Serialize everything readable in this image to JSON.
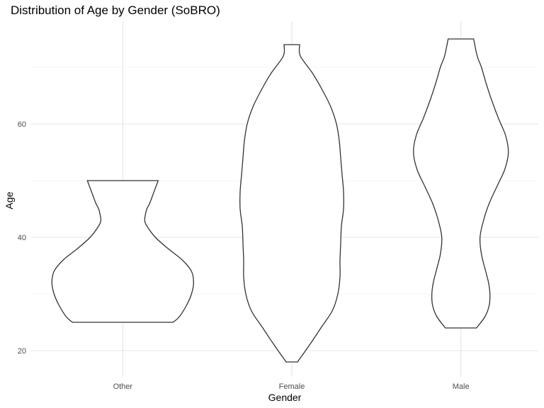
{
  "chart_data": {
    "type": "violin",
    "title": "Distribution of Age by Gender (SoBRO)",
    "xlabel": "Gender",
    "ylabel": "Age",
    "categories": [
      "Other",
      "Female",
      "Male"
    ],
    "y_ticks": [
      20,
      40,
      60
    ],
    "ylim": [
      15.5,
      78
    ],
    "grid": true,
    "series": [
      {
        "category": "Other",
        "min": 25,
        "max": 50,
        "density": [
          [
            25,
            0.71
          ],
          [
            26,
            0.8
          ],
          [
            28,
            0.9
          ],
          [
            30,
            0.97
          ],
          [
            32,
            1.0
          ],
          [
            34,
            0.97
          ],
          [
            36,
            0.84
          ],
          [
            38,
            0.64
          ],
          [
            40,
            0.46
          ],
          [
            42,
            0.34
          ],
          [
            43,
            0.31
          ],
          [
            44,
            0.32
          ],
          [
            45,
            0.34
          ],
          [
            46,
            0.38
          ],
          [
            48,
            0.44
          ],
          [
            50,
            0.5
          ]
        ]
      },
      {
        "category": "Female",
        "min": 18,
        "max": 74,
        "density": [
          [
            18,
            0.08
          ],
          [
            21,
            0.25
          ],
          [
            24,
            0.41
          ],
          [
            27,
            0.57
          ],
          [
            30,
            0.65
          ],
          [
            33,
            0.68
          ],
          [
            36,
            0.68
          ],
          [
            39,
            0.69
          ],
          [
            42,
            0.7
          ],
          [
            45,
            0.73
          ],
          [
            48,
            0.73
          ],
          [
            51,
            0.71
          ],
          [
            54,
            0.69
          ],
          [
            57,
            0.67
          ],
          [
            60,
            0.63
          ],
          [
            63,
            0.55
          ],
          [
            66,
            0.43
          ],
          [
            69,
            0.29
          ],
          [
            72,
            0.12
          ],
          [
            74,
            0.11
          ]
        ]
      },
      {
        "category": "Male",
        "min": 24,
        "max": 75,
        "density": [
          [
            24,
            0.22
          ],
          [
            26,
            0.34
          ],
          [
            28,
            0.4
          ],
          [
            30,
            0.41
          ],
          [
            32,
            0.39
          ],
          [
            34,
            0.35
          ],
          [
            37,
            0.29
          ],
          [
            40,
            0.27
          ],
          [
            43,
            0.32
          ],
          [
            46,
            0.4
          ],
          [
            49,
            0.51
          ],
          [
            52,
            0.62
          ],
          [
            55,
            0.67
          ],
          [
            58,
            0.63
          ],
          [
            61,
            0.53
          ],
          [
            64,
            0.44
          ],
          [
            67,
            0.36
          ],
          [
            70,
            0.29
          ],
          [
            72,
            0.23
          ],
          [
            75,
            0.18
          ]
        ]
      }
    ]
  }
}
